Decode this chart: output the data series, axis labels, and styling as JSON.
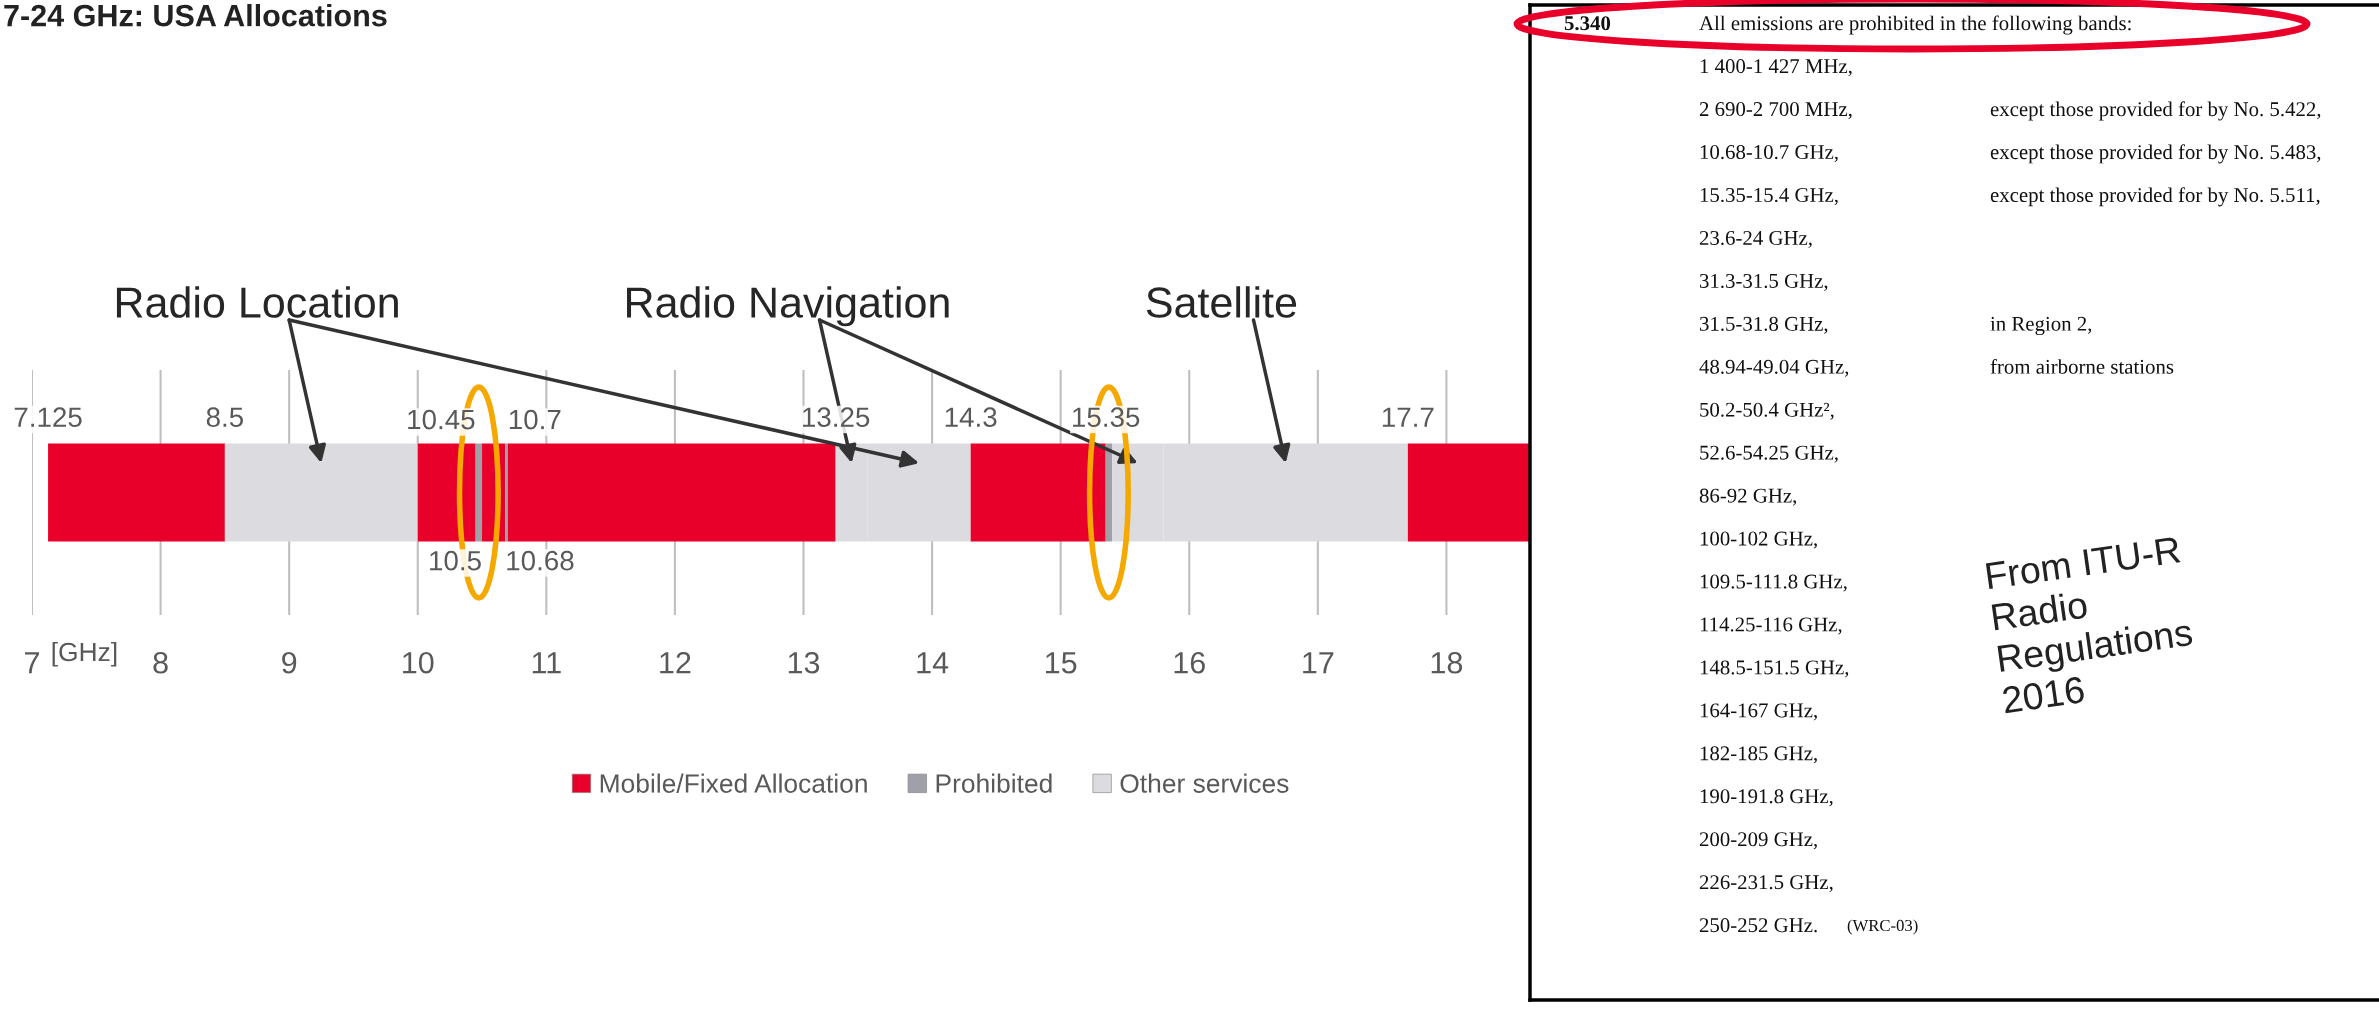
{
  "chart_data": [
    {
      "type": "bar",
      "orientation": "horizontal",
      "title": "7-24 GHz: USA Allocations",
      "xlabel": "[GHz]",
      "categories": [
        null
      ],
      "series": [
        {
          "name": "Mobile/Fixed Allocation",
          "color": "#e8002a",
          "base": [
            7.125
          ],
          "values": [
            1.375
          ]
        },
        {
          "color": "#dcdbe0",
          "base": [
            8.5
          ],
          "values": [
            1.5
          ]
        },
        {
          "color": "#e8002a",
          "base": [
            10.0
          ],
          "values": [
            0.45
          ]
        },
        {
          "name": "Prohibited",
          "color": "#a0a0a8",
          "base": [
            10.45
          ],
          "values": [
            0.05
          ]
        },
        {
          "color": "#e8002a",
          "base": [
            10.5
          ],
          "values": [
            0.18
          ]
        },
        {
          "color": "#a0a0a8",
          "base": [
            10.68
          ],
          "values": [
            0.02
          ]
        },
        {
          "color": "#e8002a",
          "base": [
            10.7
          ],
          "values": [
            2.55
          ]
        },
        {
          "name": "Other services",
          "color": "#dcdbe0",
          "base": [
            13.25
          ],
          "values": [
            0.25
          ]
        },
        {
          "color": "#dcdbe0",
          "base": [
            13.5
          ],
          "values": [
            0.8
          ]
        },
        {
          "color": "#e8002a",
          "base": [
            14.3
          ],
          "values": [
            1.05
          ]
        },
        {
          "color": "#a0a0a8",
          "base": [
            15.35
          ],
          "values": [
            0.05
          ]
        },
        {
          "color": "#dcdbe0",
          "base": [
            15.4
          ],
          "values": [
            0.4
          ]
        },
        {
          "color": "#dcdbe0",
          "base": [
            15.8
          ],
          "values": [
            1.9
          ]
        },
        {
          "color": "#e8002a",
          "base": [
            17.7
          ],
          "values": [
            0.95
          ]
        }
      ],
      "xlim": [
        7,
        18.65
      ],
      "xticks": [
        7,
        8,
        9,
        10,
        11,
        12,
        13,
        14,
        15,
        16,
        17,
        18
      ],
      "x2lim": [
        7,
        18.65
      ],
      "x2ticks": [
        7.125,
        8.5,
        13.25,
        14.3,
        15.35,
        17.7
      ],
      "grid": "x",
      "legend": "bottom",
      "tick_labels": "x",
      "annotations": [
        "Radio Location",
        "Radio Navigation",
        "Satellite",
        "10.45",
        "10.7",
        "10.5",
        "10.68"
      ]
    },
    {
      "type": "other",
      "annotations": [
        "5.340",
        "All emissions are prohibited in the following bands:",
        "1 400-1 427 MHz,",
        "2 690-2 700 MHz,   except those provided for by No. 5.422,",
        "10.68-10.7 GHz,   except those provided for by No. 5.483,",
        "15.35-15.4 GHz,   except those provided for by No. 5.511,",
        "23.6-24 GHz,",
        "31.3-31.5 GHz,",
        "31.5-31.8 GHz,   in Region 2,",
        "48.94-49.04 GHz,   from airborne stations",
        "50.2-50.4 GHz²,",
        "52.6-54.25 GHz,",
        "86-92 GHz,",
        "100-102 GHz,",
        "109.5-111.8 GHz,",
        "114.25-116 GHz,",
        "148.5-151.5 GHz,",
        "164-167 GHz,",
        "182-185 GHz,",
        "190-191.8 GHz,",
        "200-209 GHz,",
        "226-231.5 GHz,",
        "250-252 GHz.   (WRC-03)",
        "From ITU-R\nRadio\nRegulations\n2016"
      ]
    }
  ]
}
